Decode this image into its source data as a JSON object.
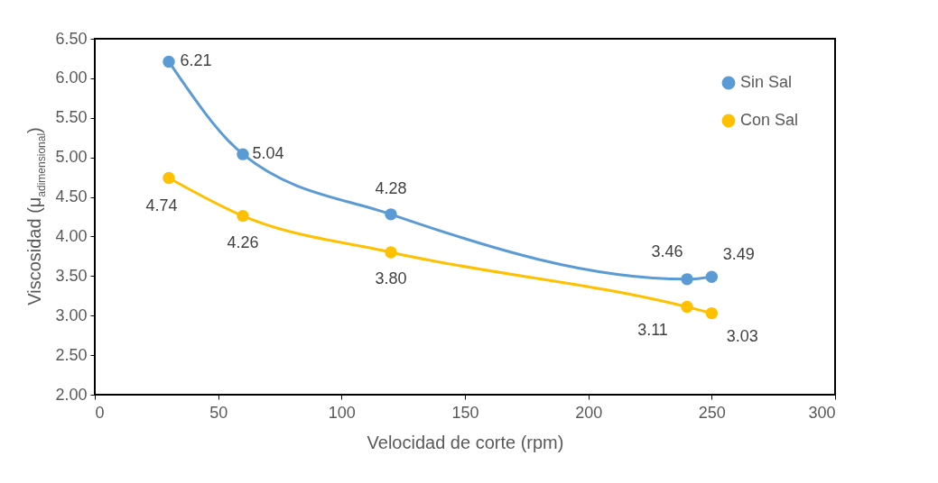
{
  "chart_data": {
    "type": "line",
    "xlabel": "Velocidad de corte (rpm)",
    "ylabel": "Viscosidad (μ$_{adimensional}$)",
    "x": [
      30,
      60,
      120,
      240,
      250
    ],
    "series": [
      {
        "name": "Sin Sal",
        "color": "#5b9bd5",
        "values": [
          6.21,
          5.04,
          4.28,
          3.46,
          3.49
        ],
        "value_labels": [
          "6.21",
          "5.04",
          "4.28",
          "3.46",
          "3.49"
        ]
      },
      {
        "name": "Con Sal",
        "color": "#ffc000",
        "values": [
          4.74,
          4.26,
          3.8,
          3.11,
          3.03
        ],
        "value_labels": [
          "4.74",
          "4.26",
          "3.80",
          "3.11",
          "3.03"
        ]
      }
    ],
    "xlim": [
      0,
      300
    ],
    "xticks": [
      0,
      50,
      100,
      150,
      200,
      250,
      300
    ],
    "ylim": [
      2,
      6.5
    ],
    "yticks": [
      {
        "value": 2,
        "label": "2.00"
      },
      {
        "value": 2.5,
        "label": "2.50"
      },
      {
        "value": 3,
        "label": "3.00"
      },
      {
        "value": 3.5,
        "label": "3.50"
      },
      {
        "value": 4,
        "label": "4.00"
      },
      {
        "value": 4.5,
        "label": "4.50"
      },
      {
        "value": 5,
        "label": "5.00"
      },
      {
        "value": 5.5,
        "label": "5.50"
      },
      {
        "value": 6,
        "label": "6.00"
      },
      {
        "value": 6.5,
        "label": "6.50"
      }
    ],
    "grid": false,
    "legend": "top right",
    "marker": "circle",
    "line_style": "solid"
  }
}
